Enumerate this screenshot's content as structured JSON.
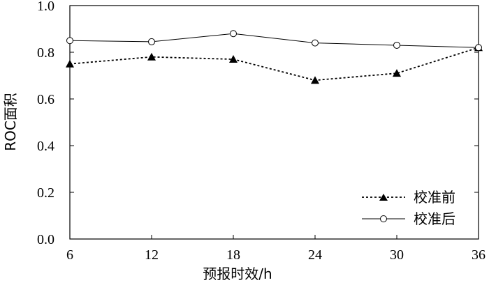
{
  "chart_data": {
    "type": "line",
    "title": "",
    "xlabel": "预报时效/h",
    "ylabel": "ROC面积",
    "x": [
      6,
      12,
      18,
      24,
      30,
      36
    ],
    "x_tick_labels": [
      "6",
      "12",
      "18",
      "24",
      "30",
      "36"
    ],
    "xlim": [
      6,
      36
    ],
    "ylim": [
      0.0,
      1.0
    ],
    "y_ticks": [
      0.0,
      0.2,
      0.4,
      0.6,
      0.8,
      1.0
    ],
    "y_tick_labels": [
      "0.0",
      "0.2",
      "0.4",
      "0.6",
      "0.8",
      "1.0"
    ],
    "grid": false,
    "legend_position": "bottom-right",
    "series": [
      {
        "name": "校准前",
        "values": [
          0.75,
          0.78,
          0.77,
          0.68,
          0.71,
          0.82
        ],
        "line_style": "dotted",
        "marker": "filled-triangle",
        "color": "#000000"
      },
      {
        "name": "校准后",
        "values": [
          0.85,
          0.845,
          0.88,
          0.84,
          0.83,
          0.82
        ],
        "line_style": "solid",
        "marker": "open-circle",
        "color": "#000000"
      }
    ]
  }
}
